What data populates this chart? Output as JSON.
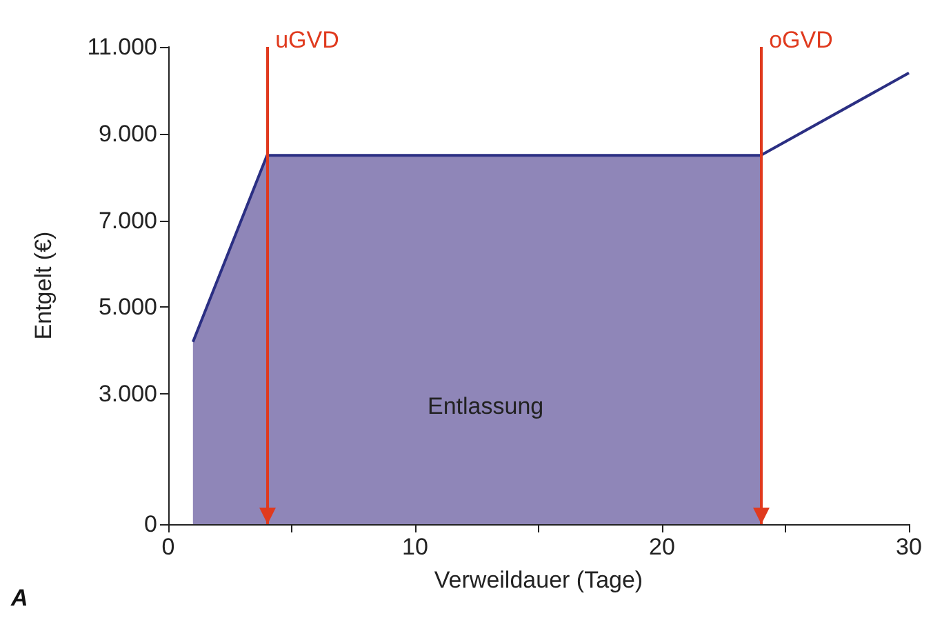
{
  "chart_data": {
    "type": "area",
    "xlabel": "Verweildauer (Tage)",
    "ylabel": "Entgelt (€)",
    "xlim": [
      0,
      30
    ],
    "xticks": [
      0,
      {
        "value": 5,
        "label": null
      },
      10,
      {
        "value": 15,
        "label": null
      },
      20,
      {
        "value": 25,
        "label": null
      },
      30
    ],
    "ylim": [
      0,
      11000
    ],
    "yticks": [
      0,
      {
        "value": 3000,
        "label": "3.000"
      },
      {
        "value": 5000,
        "label": "5.000"
      },
      {
        "value": 7000,
        "label": "7.000"
      },
      {
        "value": 9000,
        "label": "9.000"
      },
      {
        "value": 11000,
        "label": "11.000"
      }
    ],
    "series": [
      {
        "type": "area",
        "color": "#8f86b8",
        "x": [
          1,
          4,
          24
        ],
        "values": [
          4200,
          8500,
          8500
        ]
      },
      {
        "type": "line",
        "color": "#2b2f83",
        "x": [
          24,
          30
        ],
        "values": [
          8500,
          10400
        ]
      }
    ],
    "ref_lines": [
      {
        "axis": "x",
        "value": 4,
        "label": "uGVD",
        "color": "#e03a1e"
      },
      {
        "axis": "x",
        "value": 24,
        "label": "oGVD",
        "color": "#e03a1e"
      }
    ],
    "annotations": [
      "Entlassung",
      "A"
    ],
    "grid": false
  }
}
